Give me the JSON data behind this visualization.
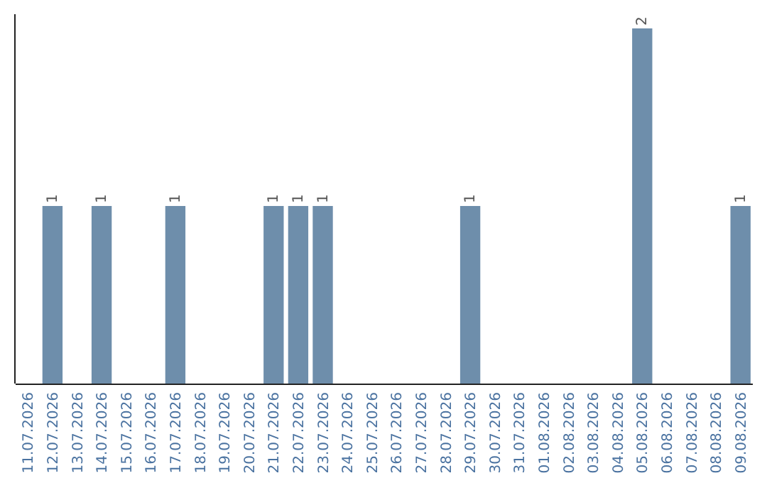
{
  "chart_data": {
    "type": "bar",
    "categories": [
      "11.07.2026",
      "12.07.2026",
      "13.07.2026",
      "14.07.2026",
      "15.07.2026",
      "16.07.2026",
      "17.07.2026",
      "18.07.2026",
      "19.07.2026",
      "20.07.2026",
      "21.07.2026",
      "22.07.2026",
      "23.07.2026",
      "24.07.2026",
      "25.07.2026",
      "26.07.2026",
      "27.07.2026",
      "28.07.2026",
      "29.07.2026",
      "30.07.2026",
      "31.07.2026",
      "01.08.2026",
      "02.08.2026",
      "03.08.2026",
      "04.08.2026",
      "05.08.2026",
      "06.08.2026",
      "07.08.2026",
      "08.08.2026",
      "09.08.2026"
    ],
    "values": [
      0,
      1,
      0,
      1,
      0,
      0,
      1,
      0,
      0,
      0,
      1,
      1,
      1,
      0,
      0,
      0,
      0,
      0,
      1,
      0,
      0,
      0,
      0,
      0,
      0,
      2,
      0,
      0,
      0,
      1
    ],
    "value_labels": [
      null,
      "1",
      null,
      "1",
      null,
      null,
      "1",
      null,
      null,
      null,
      "1",
      "1",
      "1",
      null,
      null,
      null,
      null,
      null,
      "1",
      null,
      null,
      null,
      null,
      null,
      null,
      "2",
      null,
      null,
      null,
      "1"
    ],
    "color": "#6e8eab",
    "tick_labels": "x"
  }
}
